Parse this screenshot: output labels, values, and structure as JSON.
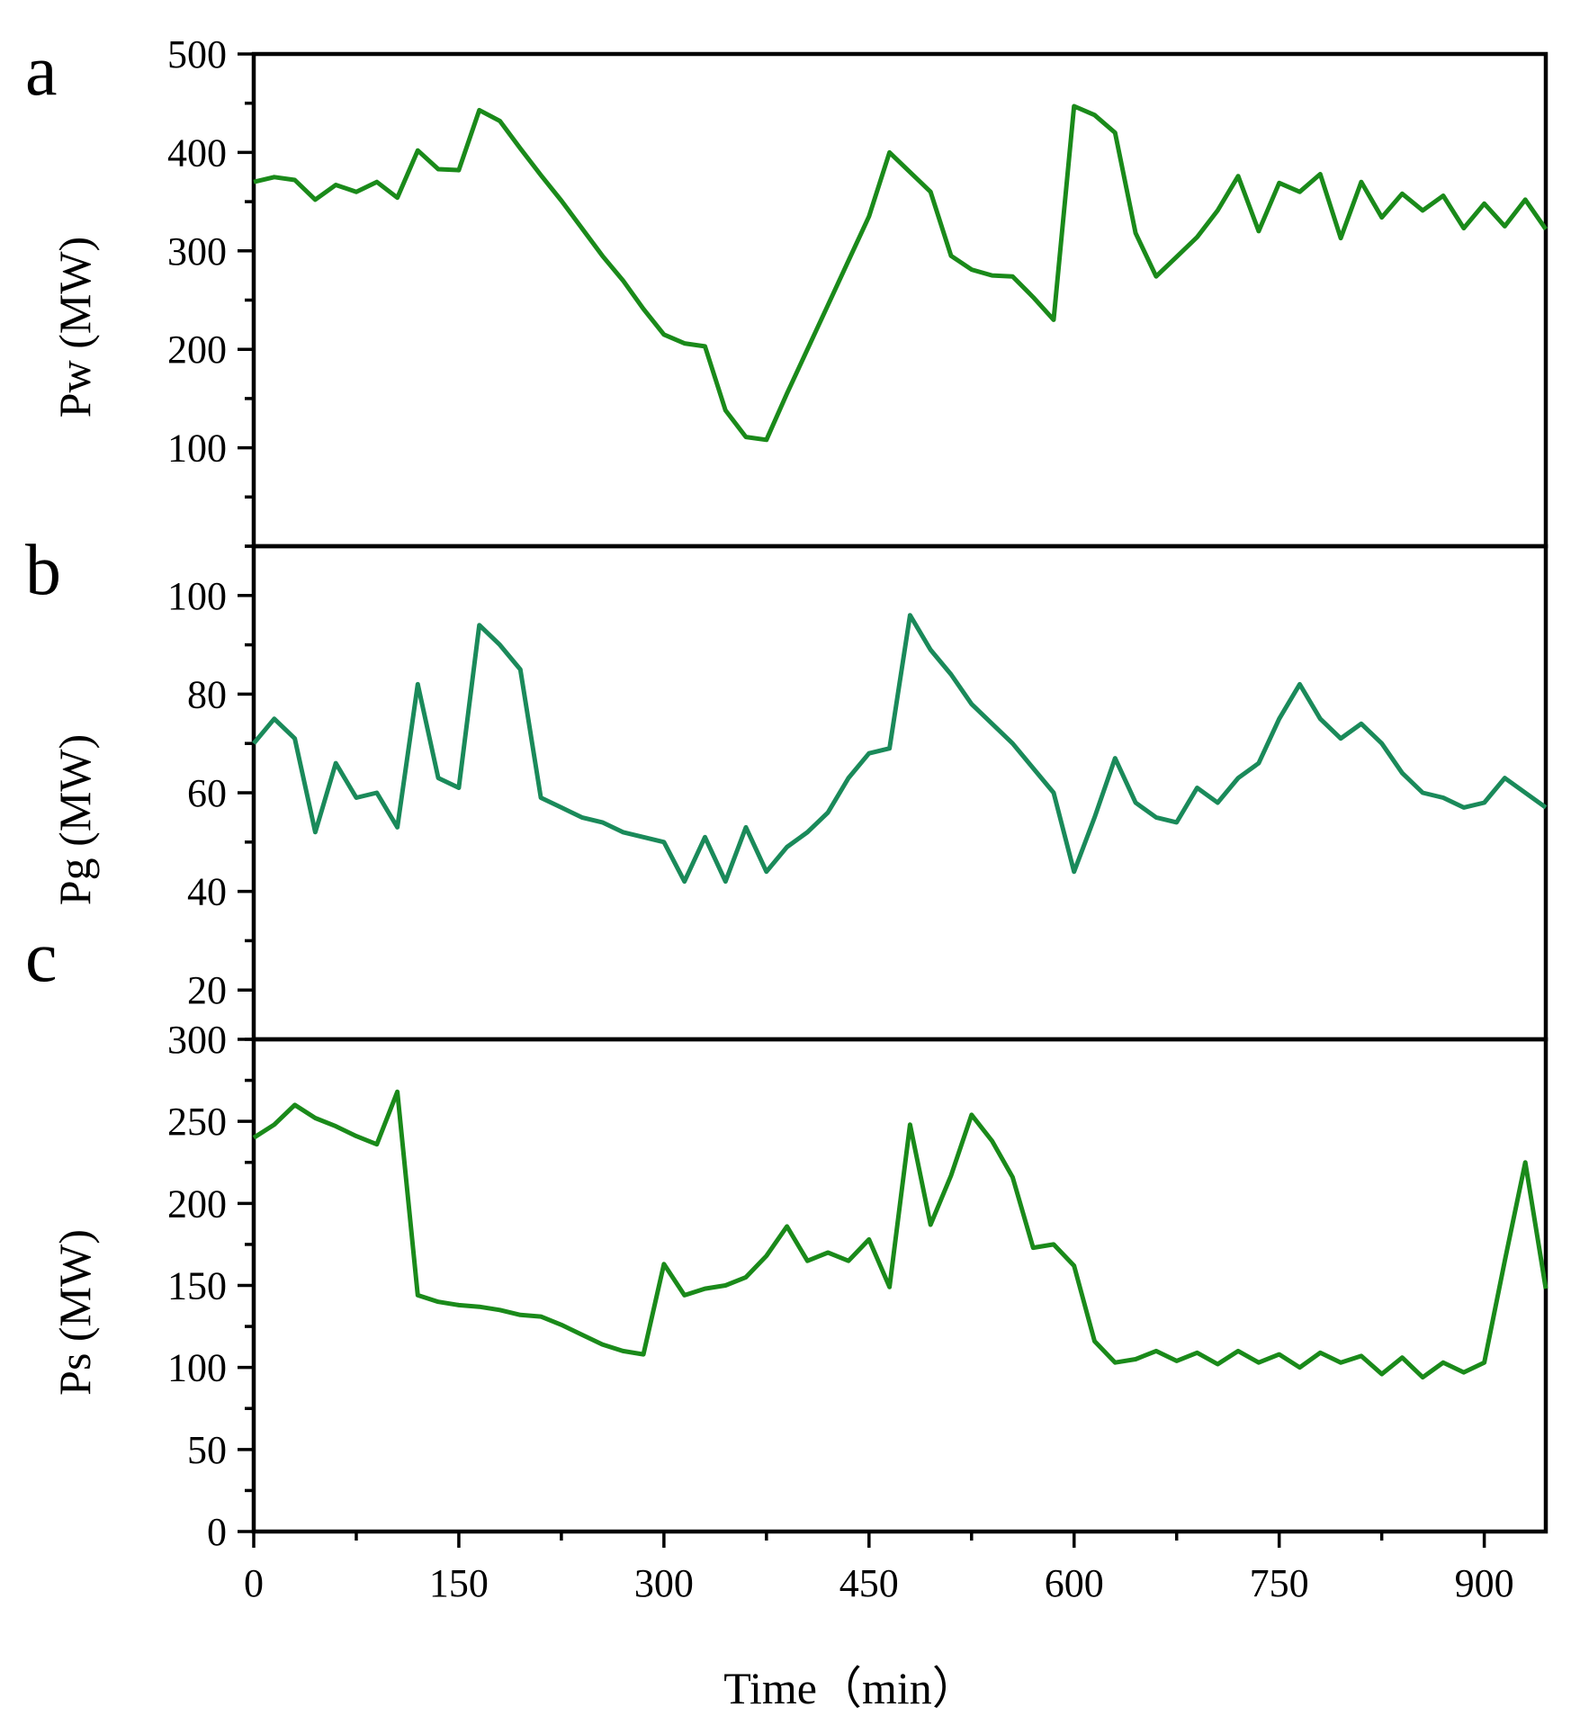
{
  "chart_data": {
    "type": "line",
    "x_axis": {
      "label": "Time（min）",
      "range": [
        0,
        945
      ],
      "ticks": [
        0,
        150,
        300,
        450,
        600,
        750,
        900
      ],
      "tick_labels": [
        "0",
        "150",
        "300",
        "450",
        "600",
        "750",
        "900"
      ]
    },
    "panels": [
      {
        "letter": "a",
        "series_name": "Pw",
        "ylabel": "Pw (MW)",
        "ylim": [
          0,
          500
        ],
        "yticks": [
          100,
          200,
          300,
          400,
          500
        ],
        "ytick_labels": [
          "100",
          "200",
          "300",
          "400",
          "500"
        ],
        "color": "#1a8a1a",
        "x": [
          0,
          15,
          30,
          45,
          60,
          75,
          90,
          105,
          120,
          135,
          150,
          165,
          180,
          195,
          210,
          225,
          240,
          255,
          270,
          285,
          300,
          315,
          330,
          345,
          360,
          375,
          390,
          405,
          420,
          435,
          450,
          465,
          480,
          495,
          510,
          525,
          540,
          555,
          570,
          585,
          600,
          615,
          630,
          645,
          660,
          675,
          690,
          705,
          720,
          735,
          750,
          765,
          780,
          795,
          810,
          825,
          840,
          855,
          870,
          885,
          900,
          915,
          930,
          945
        ],
        "y": [
          370,
          375,
          372,
          352,
          367,
          360,
          370,
          354,
          402,
          383,
          382,
          443,
          432,
          404,
          377,
          351,
          323,
          295,
          270,
          241,
          215,
          206,
          203,
          138,
          111,
          108,
          155,
          200,
          245,
          290,
          335,
          400,
          380,
          360,
          295,
          281,
          275,
          274,
          253,
          230,
          447,
          438,
          420,
          318,
          274,
          294,
          314,
          341,
          376,
          320,
          369,
          360,
          378,
          313,
          370,
          334,
          358,
          341,
          356,
          323,
          348,
          325,
          352,
          322
        ]
      },
      {
        "letter": "b",
        "series_name": "Pg",
        "ylabel": "Pg (MW)",
        "ylim": [
          10,
          110
        ],
        "yticks": [
          20,
          40,
          60,
          80,
          100
        ],
        "ytick_labels": [
          "20",
          "40",
          "60",
          "80",
          "100"
        ],
        "color": "#1a8a5a",
        "x": [
          0,
          15,
          30,
          45,
          60,
          75,
          90,
          105,
          120,
          135,
          150,
          165,
          180,
          195,
          210,
          225,
          240,
          255,
          270,
          285,
          300,
          315,
          330,
          345,
          360,
          375,
          390,
          405,
          420,
          435,
          450,
          465,
          480,
          495,
          510,
          525,
          540,
          555,
          570,
          585,
          600,
          615,
          630,
          645,
          660,
          675,
          690,
          705,
          720,
          735,
          750,
          765,
          780,
          795,
          810,
          825,
          840,
          855,
          870,
          885,
          900,
          915,
          930,
          945
        ],
        "y": [
          70,
          75,
          71,
          52,
          66,
          59,
          60,
          53,
          82,
          63,
          61,
          94,
          90,
          85,
          59,
          57,
          55,
          54,
          52,
          51,
          50,
          42,
          51,
          42,
          53,
          44,
          49,
          52,
          56,
          63,
          68,
          69,
          96,
          89,
          84,
          78,
          74,
          70,
          65,
          60,
          44,
          55,
          67,
          58,
          55,
          54,
          61,
          58,
          63,
          66,
          75,
          82,
          75,
          71,
          74,
          70,
          64,
          60,
          59,
          57,
          58,
          63,
          60,
          57
        ]
      },
      {
        "letter": "c",
        "series_name": "Ps",
        "ylabel": "Ps (MW)",
        "ylim": [
          0,
          300
        ],
        "yticks": [
          0,
          50,
          100,
          150,
          200,
          250,
          300
        ],
        "ytick_labels": [
          "0",
          "50",
          "100",
          "150",
          "200",
          "250",
          "300"
        ],
        "color": "#1a8a1a",
        "x": [
          0,
          15,
          30,
          45,
          60,
          75,
          90,
          105,
          120,
          135,
          150,
          165,
          180,
          195,
          210,
          225,
          240,
          255,
          270,
          285,
          300,
          315,
          330,
          345,
          360,
          375,
          390,
          405,
          420,
          435,
          450,
          465,
          480,
          495,
          510,
          525,
          540,
          555,
          570,
          585,
          600,
          615,
          630,
          645,
          660,
          675,
          690,
          705,
          720,
          735,
          750,
          765,
          780,
          795,
          810,
          825,
          840,
          855,
          870,
          885,
          900,
          915,
          930,
          945
        ],
        "y": [
          240,
          248,
          260,
          252,
          247,
          241,
          236,
          268,
          144,
          140,
          138,
          137,
          135,
          132,
          131,
          126,
          120,
          114,
          110,
          108,
          163,
          144,
          148,
          150,
          155,
          168,
          186,
          165,
          170,
          165,
          178,
          149,
          248,
          187,
          217,
          254,
          238,
          216,
          173,
          175,
          162,
          116,
          103,
          105,
          110,
          104,
          109,
          102,
          110,
          103,
          108,
          100,
          109,
          103,
          107,
          96,
          106,
          94,
          103,
          97,
          103,
          165,
          225,
          148
        ]
      }
    ]
  }
}
